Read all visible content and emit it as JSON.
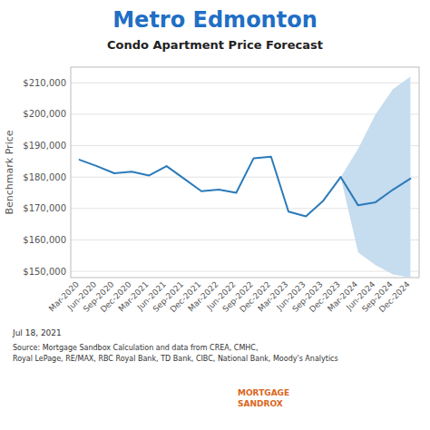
{
  "chart_data": {
    "type": "line",
    "title": "Metro Edmonton",
    "subtitle": "Condo Apartment Price Forecast",
    "y_label": "Benchmark Price",
    "annotations": [
      "Jul 18, 2021",
      "Source: Mortgage Sandbox Calculation and data from CREA, CMHC,",
      "Royal LePage, RE/MAX, RBC Royal Bank, TD Bank, CIBC, National Bank, Moody's Analytics",
      "MORTGAGE",
      "SANDROX"
    ],
    "categories": [
      "Mar-2020",
      "Jun-2020",
      "Sep-2020",
      "Dec-2020",
      "Mar-2021",
      "Jun-2021",
      "Sep-2021",
      "Dec-2021",
      "Mar-2022",
      "Jun-2022",
      "Sep-2022",
      "Dec-2022",
      "Mar-2023",
      "Jun-2023",
      "Sep-2023",
      "Dec-2023",
      "Mar-2024",
      "Jun-2024",
      "Sep-2024",
      "Dec-2024"
    ],
    "series": [
      {
        "type": "line",
        "color": "#2b7bba",
        "values": [
          185500,
          183500,
          181200,
          181700,
          180500,
          183500,
          179500,
          175500,
          176000,
          175000,
          186000,
          186500,
          169000,
          167500,
          172500,
          180000,
          null,
          null,
          null,
          null
        ]
      },
      {
        "type": "line",
        "color": "#2b7bba",
        "values": [
          null,
          null,
          null,
          null,
          null,
          null,
          null,
          null,
          null,
          null,
          null,
          null,
          null,
          null,
          null,
          180000,
          171000,
          172000,
          176000,
          179500
        ]
      },
      {
        "type": "band",
        "color": "#c6dcef",
        "upper": [
          null,
          null,
          null,
          null,
          null,
          null,
          null,
          null,
          null,
          null,
          null,
          null,
          null,
          null,
          null,
          180000,
          189000,
          200000,
          208000,
          212000
        ],
        "lower": [
          null,
          null,
          null,
          null,
          null,
          null,
          null,
          null,
          null,
          null,
          null,
          null,
          null,
          null,
          null,
          180000,
          156000,
          152000,
          149000,
          148000
        ]
      }
    ],
    "ylim": [
      148000,
      215000
    ],
    "yticks": [
      {
        "value": 150000,
        "label": "$150,000"
      },
      {
        "value": 160000,
        "label": "$160,000"
      },
      {
        "value": 170000,
        "label": "$170,000"
      },
      {
        "value": 180000,
        "label": "$180,000"
      },
      {
        "value": 190000,
        "label": "$190,000"
      },
      {
        "value": 200000,
        "label": "$200,000"
      },
      {
        "value": 210000,
        "label": "$210,000"
      }
    ],
    "grid": true
  }
}
